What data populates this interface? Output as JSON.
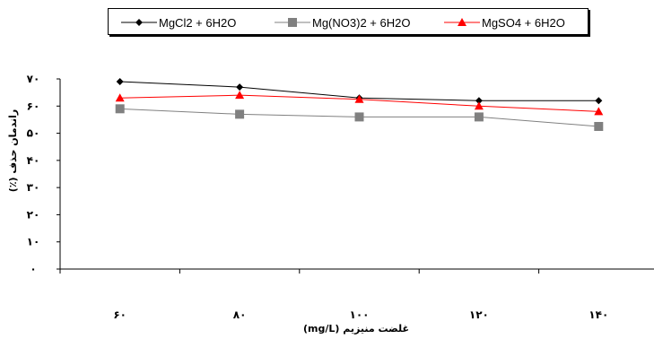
{
  "chart_data": {
    "type": "line",
    "title": "",
    "xlabel": "غلضت منیزیم (mg/L)",
    "ylabel": "راندمان حذف (٪)",
    "categories": [
      "۶۰",
      "۸۰",
      "۱۰۰",
      "۱۲۰",
      "۱۴۰"
    ],
    "x": [
      60,
      80,
      100,
      120,
      140
    ],
    "ylim": [
      0,
      70
    ],
    "yticks": [
      0,
      10,
      20,
      30,
      40,
      50,
      60,
      70
    ],
    "ytick_labels": [
      "۰",
      "۱۰",
      "۲۰",
      "۳۰",
      "۴۰",
      "۵۰",
      "۶۰",
      "۷۰"
    ],
    "grid": false,
    "legend_position": "top",
    "series": [
      {
        "name": "MgCl2 + 6H2O",
        "values": [
          69,
          67,
          63,
          62,
          62
        ],
        "color": "#000000",
        "marker": "diamond"
      },
      {
        "name": "Mg(NO3)2 + 6H2O",
        "values": [
          59,
          57,
          56,
          56,
          52.5
        ],
        "color": "#808080",
        "marker": "square"
      },
      {
        "name": "MgSO4 + 6H2O",
        "values": [
          63,
          64,
          62.5,
          60,
          58
        ],
        "color": "#ff0000",
        "marker": "triangle"
      }
    ]
  }
}
